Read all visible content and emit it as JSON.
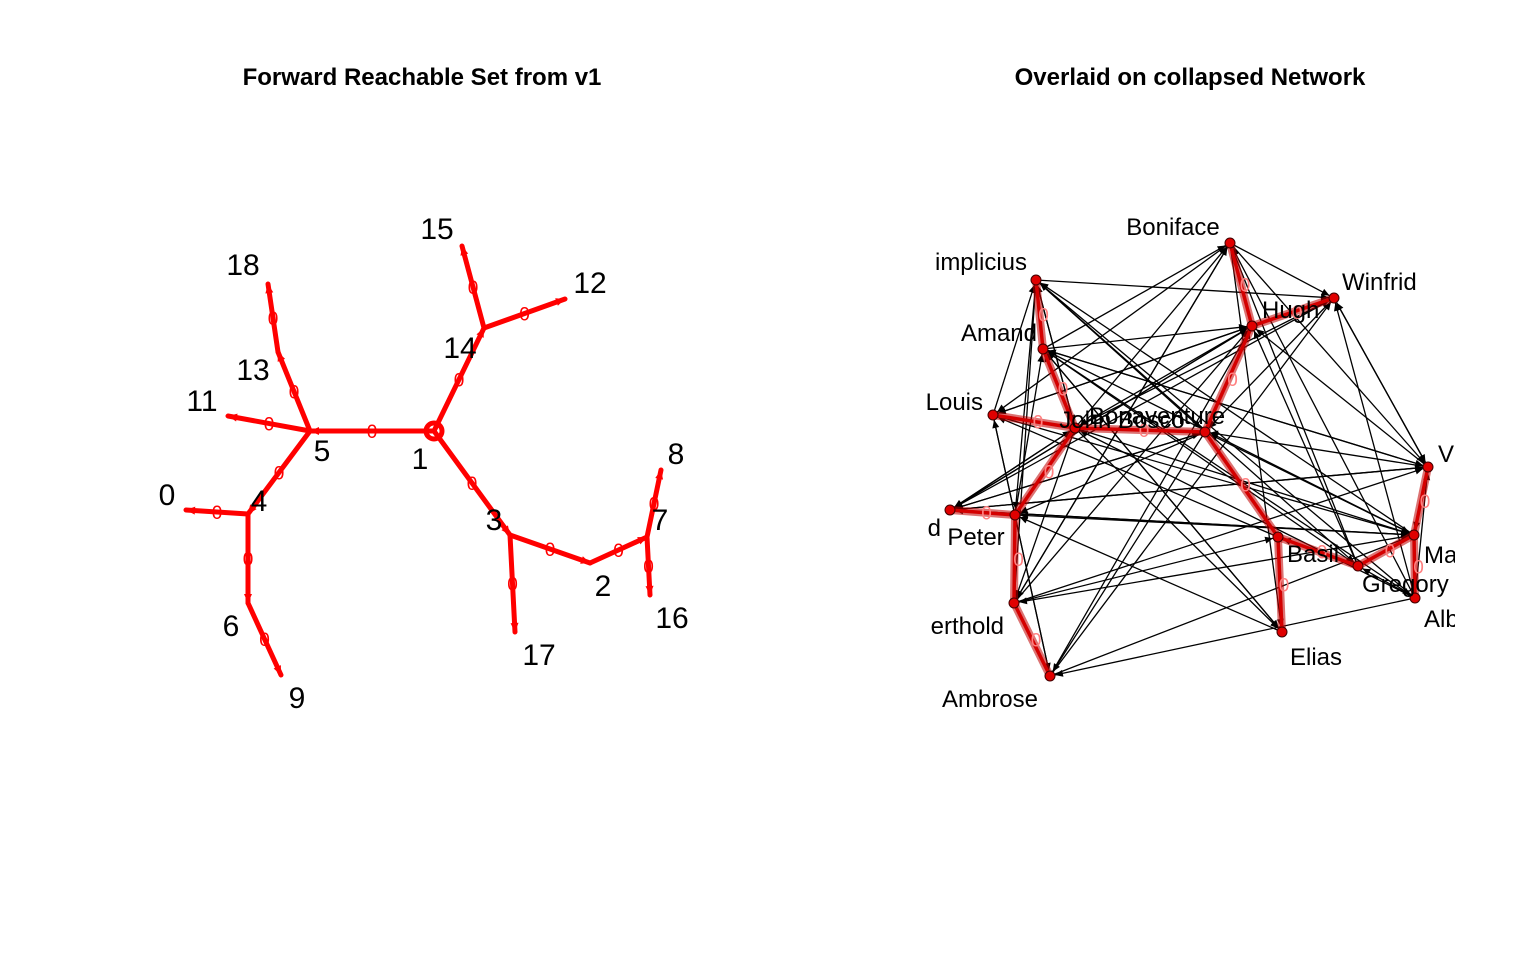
{
  "titles": {
    "left": "Forward Reachable Set from v1",
    "right": "Overlaid on collapsed Network"
  },
  "colors": {
    "path": "#ff0000",
    "overlay": "#d40000",
    "network_edges": "#000000",
    "node_fill": "#e00000",
    "edge_label": "#ff0000"
  },
  "left_graph": {
    "edge_label": "0",
    "nodes": [
      "0",
      "1",
      "2",
      "3",
      "4",
      "5",
      "6",
      "7",
      "8",
      "9",
      "11",
      "12",
      "13",
      "14",
      "15",
      "16",
      "17",
      "18"
    ],
    "edges": [
      [
        "1",
        "5"
      ],
      [
        "5",
        "13"
      ],
      [
        "13",
        "18"
      ],
      [
        "5",
        "11"
      ],
      [
        "5",
        "4"
      ],
      [
        "4",
        "0"
      ],
      [
        "4",
        "6"
      ],
      [
        "6",
        "9"
      ],
      [
        "1",
        "14"
      ],
      [
        "14",
        "15"
      ],
      [
        "14",
        "12"
      ],
      [
        "1",
        "3"
      ],
      [
        "3",
        "17"
      ],
      [
        "3",
        "2"
      ],
      [
        "2",
        "7"
      ],
      [
        "7",
        "8"
      ],
      [
        "7",
        "16"
      ]
    ]
  },
  "right_graph": {
    "edge_label": "0",
    "nodes": [
      "Boniface",
      "implicius",
      "Amand",
      "Winfrid",
      "Hugh",
      "Louis",
      "Bonaventure",
      "John Bosco",
      "V",
      "d",
      "Peter",
      "Basil",
      "Ma",
      "Gregory",
      "Alb",
      "erthold",
      "Ambrose",
      "Elias"
    ],
    "highlighted_edges": [
      [
        "implicius",
        "Amand"
      ],
      [
        "Amand",
        "John Bosco"
      ],
      [
        "Louis",
        "John Bosco"
      ],
      [
        "John Bosco",
        "Bonaventure"
      ],
      [
        "Boniface",
        "Hugh"
      ],
      [
        "Hugh",
        "Winfrid"
      ],
      [
        "Hugh",
        "Bonaventure"
      ],
      [
        "John Bosco",
        "Peter"
      ],
      [
        "d",
        "Peter"
      ],
      [
        "Peter",
        "erthold"
      ],
      [
        "erthold",
        "Ambrose"
      ],
      [
        "Bonaventure",
        "Basil"
      ],
      [
        "Basil",
        "Elias"
      ],
      [
        "Basil",
        "Gregory"
      ],
      [
        "Gregory",
        "Ma"
      ],
      [
        "Ma",
        "V"
      ],
      [
        "Ma",
        "Alb"
      ]
    ]
  }
}
